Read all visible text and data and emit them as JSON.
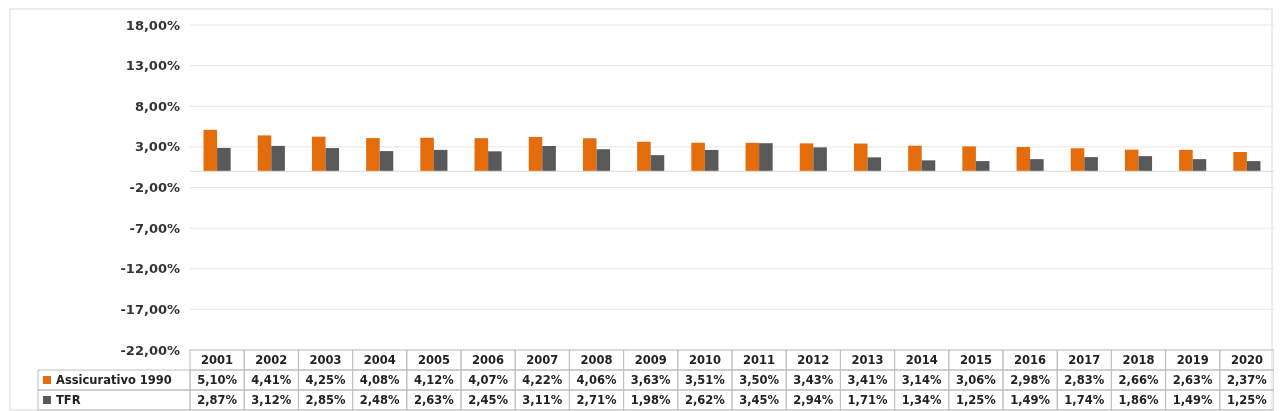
{
  "chart_data": {
    "type": "bar",
    "categories": [
      "2001",
      "2002",
      "2003",
      "2004",
      "2005",
      "2006",
      "2007",
      "2008",
      "2009",
      "2010",
      "2011",
      "2012",
      "2013",
      "2014",
      "2015",
      "2016",
      "2017",
      "2018",
      "2019",
      "2020"
    ],
    "series": [
      {
        "name": "Assicurativo 1990",
        "color": "#e46c0a",
        "values": [
          5.1,
          4.41,
          4.25,
          4.08,
          4.12,
          4.07,
          4.22,
          4.06,
          3.63,
          3.51,
          3.5,
          3.43,
          3.41,
          3.14,
          3.06,
          2.98,
          2.83,
          2.66,
          2.63,
          2.37
        ],
        "value_labels": [
          "5,10%",
          "4,41%",
          "4,25%",
          "4,08%",
          "4,12%",
          "4,07%",
          "4,22%",
          "4,06%",
          "3,63%",
          "3,51%",
          "3,50%",
          "3,43%",
          "3,41%",
          "3,14%",
          "3,06%",
          "2,98%",
          "2,83%",
          "2,66%",
          "2,63%",
          "2,37%"
        ]
      },
      {
        "name": "TFR",
        "color": "#595959",
        "values": [
          2.87,
          3.12,
          2.85,
          2.48,
          2.63,
          2.45,
          3.11,
          2.71,
          1.98,
          2.62,
          3.45,
          2.94,
          1.71,
          1.34,
          1.25,
          1.49,
          1.74,
          1.86,
          1.49,
          1.25
        ],
        "value_labels": [
          "2,87%",
          "3,12%",
          "2,85%",
          "2,48%",
          "2,63%",
          "2,45%",
          "3,11%",
          "2,71%",
          "1,98%",
          "2,62%",
          "3,45%",
          "2,94%",
          "1,71%",
          "1,34%",
          "1,25%",
          "1,49%",
          "1,74%",
          "1,86%",
          "1,49%",
          "1,25%"
        ]
      }
    ],
    "ylim": [
      -22,
      18
    ],
    "yticks": [
      {
        "value": -22,
        "label": "-22,00%"
      },
      {
        "value": -17,
        "label": "-17,00%"
      },
      {
        "value": -12,
        "label": "-12,00%"
      },
      {
        "value": -7,
        "label": "-7,00%"
      },
      {
        "value": -2,
        "label": "-2,00%"
      },
      {
        "value": 3,
        "label": "3,00%"
      },
      {
        "value": 8,
        "label": "8,00%"
      },
      {
        "value": 13,
        "label": "13,00%"
      },
      {
        "value": 18,
        "label": "18,00%"
      }
    ],
    "grid": "y",
    "legend": "bottom"
  }
}
